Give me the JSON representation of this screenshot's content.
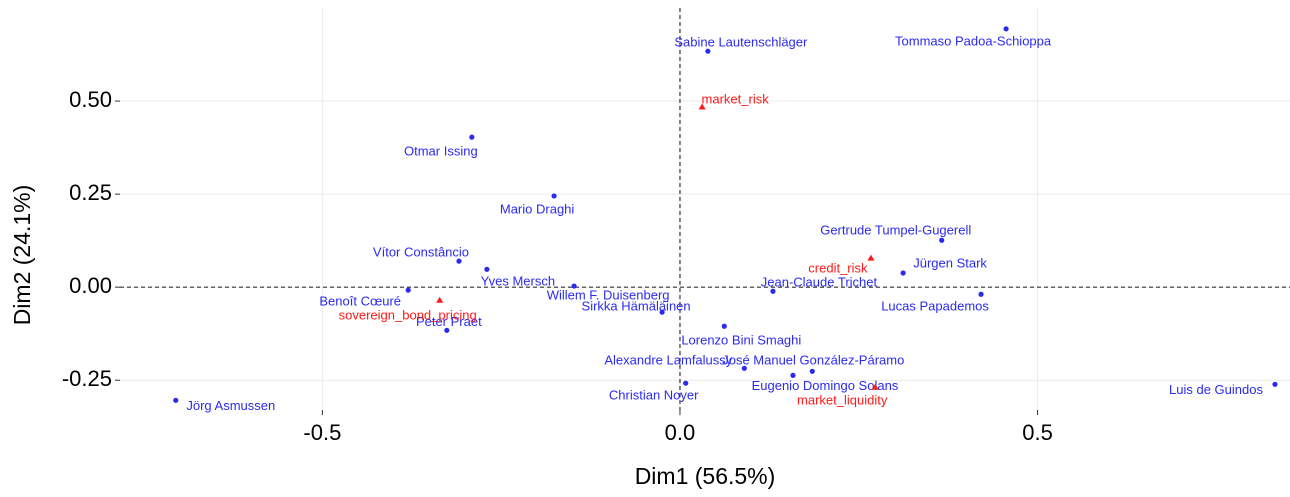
{
  "chart_data": {
    "type": "scatter",
    "xlabel": "Dim1 (56.5%)",
    "ylabel": "Dim2 (24.1%)",
    "xlim": [
      -0.783,
      0.853
    ],
    "ylim": [
      -0.33,
      0.75
    ],
    "xticks": [
      -0.5,
      {
        "value": 0,
        "label": "0.0"
      },
      0.5
    ],
    "yticks": [
      {
        "value": -0.25,
        "label": "-0.25"
      },
      {
        "value": 0,
        "label": "0.00"
      },
      {
        "value": 0.25,
        "label": "0.25"
      },
      {
        "value": 0.5,
        "label": "0.50"
      }
    ],
    "grid": true,
    "reference_lines": {
      "x": 0,
      "y": 0
    },
    "series": [
      {
        "color": "#2b2bf0",
        "marker": "circle",
        "labels": [
          "Sabine Lautenschläger",
          "Tommaso Padoa-Schioppa",
          "Otmar Issing",
          "Mario Draghi",
          "Gertrude Tumpel-Gugerell",
          "Vítor Constâncio",
          "Yves Mersch",
          "Jürgen Stark",
          "Willem F. Duisenberg",
          "Jean-Claude Trichet",
          "Lucas Papademos",
          "Benoît Cœuré",
          "Sirkka Hämäläinen",
          "Peter Praet",
          "Lorenzo Bini Smaghi",
          "José Manuel González-Páramo",
          "Alexandre Lamfalussy",
          "Eugenio Domingo Solans",
          "Christian Noyer",
          "Luis de Guindos",
          "Jörg Asmussen"
        ],
        "x": [
          0.039,
          0.456,
          -0.291,
          -0.176,
          0.366,
          -0.309,
          -0.27,
          0.312,
          -0.148,
          0.13,
          0.421,
          -0.38,
          -0.025,
          -0.326,
          0.062,
          0.185,
          0.09,
          0.158,
          0.008,
          0.832,
          -0.705
        ],
        "values": [
          0.634,
          0.694,
          0.403,
          0.245,
          0.126,
          0.07,
          0.048,
          0.038,
          0.003,
          -0.011,
          -0.019,
          -0.008,
          -0.067,
          -0.116,
          -0.105,
          -0.226,
          -0.218,
          -0.237,
          -0.258,
          -0.261,
          -0.304
        ]
      },
      {
        "color": "#ff1a1a",
        "marker": "triangle",
        "labels": [
          "market_risk",
          "credit_risk",
          "sovereign_bond_pricing",
          "market_liquidity"
        ],
        "x": [
          0.031,
          0.267,
          -0.336,
          0.273
        ],
        "values": [
          0.484,
          0.078,
          -0.035,
          -0.269
        ]
      }
    ]
  }
}
